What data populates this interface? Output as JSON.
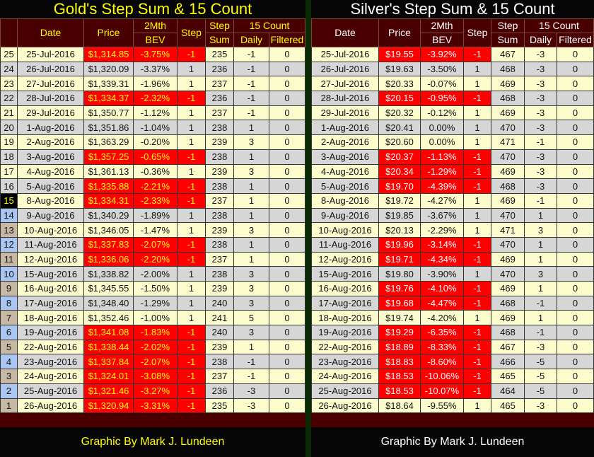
{
  "colors": {
    "header_bg": "#4a0000",
    "negative": "#ff0000",
    "row_a": "#fdfccc",
    "row_b": "#d6d6d6"
  },
  "headers": {
    "date": "Date",
    "price": "Price",
    "bev1": "2Mth",
    "bev2": "BEV",
    "step": "Step",
    "sum1": "Step",
    "sum2": "Sum",
    "count": "15 Count",
    "daily": "Daily",
    "filtered": "Filtered"
  },
  "gold": {
    "title": "Gold's Step Sum & 15 Count",
    "footer": "Graphic By Mark J. Lundeen",
    "rows": [
      [
        "25",
        "25-Jul-2016",
        "$1,314.85",
        "-3.75%",
        "-1",
        "235",
        "-1",
        "0"
      ],
      [
        "24",
        "26-Jul-2016",
        "$1,320.09",
        "-3.37%",
        "1",
        "236",
        "-1",
        "0"
      ],
      [
        "23",
        "27-Jul-2016",
        "$1,339.31",
        "-1.96%",
        "1",
        "237",
        "-1",
        "0"
      ],
      [
        "22",
        "28-Jul-2016",
        "$1,334.37",
        "-2.32%",
        "-1",
        "236",
        "-1",
        "0"
      ],
      [
        "21",
        "29-Jul-2016",
        "$1,350.77",
        "-1.12%",
        "1",
        "237",
        "-1",
        "0"
      ],
      [
        "20",
        "1-Aug-2016",
        "$1,351.86",
        "-1.04%",
        "1",
        "238",
        "1",
        "0"
      ],
      [
        "19",
        "2-Aug-2016",
        "$1,363.29",
        "-0.20%",
        "1",
        "239",
        "3",
        "0"
      ],
      [
        "18",
        "3-Aug-2016",
        "$1,357.25",
        "-0.65%",
        "-1",
        "238",
        "1",
        "0"
      ],
      [
        "17",
        "4-Aug-2016",
        "$1,361.13",
        "-0.36%",
        "1",
        "239",
        "3",
        "0"
      ],
      [
        "16",
        "5-Aug-2016",
        "$1,335.88",
        "-2.21%",
        "-1",
        "238",
        "1",
        "0"
      ],
      [
        "15",
        "8-Aug-2016",
        "$1,334.31",
        "-2.33%",
        "-1",
        "237",
        "1",
        "0"
      ],
      [
        "14",
        "9-Aug-2016",
        "$1,340.29",
        "-1.89%",
        "1",
        "238",
        "1",
        "0"
      ],
      [
        "13",
        "10-Aug-2016",
        "$1,346.05",
        "-1.47%",
        "1",
        "239",
        "3",
        "0"
      ],
      [
        "12",
        "11-Aug-2016",
        "$1,337.83",
        "-2.07%",
        "-1",
        "238",
        "1",
        "0"
      ],
      [
        "11",
        "12-Aug-2016",
        "$1,336.06",
        "-2.20%",
        "-1",
        "237",
        "1",
        "0"
      ],
      [
        "10",
        "15-Aug-2016",
        "$1,338.82",
        "-2.00%",
        "1",
        "238",
        "3",
        "0"
      ],
      [
        "9",
        "16-Aug-2016",
        "$1,345.55",
        "-1.50%",
        "1",
        "239",
        "3",
        "0"
      ],
      [
        "8",
        "17-Aug-2016",
        "$1,348.40",
        "-1.29%",
        "1",
        "240",
        "3",
        "0"
      ],
      [
        "7",
        "18-Aug-2016",
        "$1,352.46",
        "-1.00%",
        "1",
        "241",
        "5",
        "0"
      ],
      [
        "6",
        "19-Aug-2016",
        "$1,341.08",
        "-1.83%",
        "-1",
        "240",
        "3",
        "0"
      ],
      [
        "5",
        "22-Aug-2016",
        "$1,338.44",
        "-2.02%",
        "-1",
        "239",
        "1",
        "0"
      ],
      [
        "4",
        "23-Aug-2016",
        "$1,337.84",
        "-2.07%",
        "-1",
        "238",
        "-1",
        "0"
      ],
      [
        "3",
        "24-Aug-2016",
        "$1,324.01",
        "-3.08%",
        "-1",
        "237",
        "-1",
        "0"
      ],
      [
        "2",
        "25-Aug-2016",
        "$1,321.46",
        "-3.27%",
        "-1",
        "236",
        "-3",
        "0"
      ],
      [
        "1",
        "26-Aug-2016",
        "$1,320.94",
        "-3.31%",
        "-1",
        "235",
        "-3",
        "0"
      ]
    ]
  },
  "silver": {
    "title": "Silver's Step Sum & 15 Count",
    "footer": "Graphic By Mark J. Lundeen",
    "rows": [
      [
        "25-Jul-2016",
        "$19.55",
        "-3.92%",
        "-1",
        "467",
        "-3",
        "0"
      ],
      [
        "26-Jul-2016",
        "$19.63",
        "-3.50%",
        "1",
        "468",
        "-3",
        "0"
      ],
      [
        "27-Jul-2016",
        "$20.33",
        "-0.07%",
        "1",
        "469",
        "-3",
        "0"
      ],
      [
        "28-Jul-2016",
        "$20.15",
        "-0.95%",
        "-1",
        "468",
        "-3",
        "0"
      ],
      [
        "29-Jul-2016",
        "$20.32",
        "-0.12%",
        "1",
        "469",
        "-3",
        "0"
      ],
      [
        "1-Aug-2016",
        "$20.41",
        "0.00%",
        "1",
        "470",
        "-3",
        "0"
      ],
      [
        "2-Aug-2016",
        "$20.60",
        "0.00%",
        "1",
        "471",
        "-1",
        "0"
      ],
      [
        "3-Aug-2016",
        "$20.37",
        "-1.13%",
        "-1",
        "470",
        "-3",
        "0"
      ],
      [
        "4-Aug-2016",
        "$20.34",
        "-1.29%",
        "-1",
        "469",
        "-3",
        "0"
      ],
      [
        "5-Aug-2016",
        "$19.70",
        "-4.39%",
        "-1",
        "468",
        "-3",
        "0"
      ],
      [
        "8-Aug-2016",
        "$19.72",
        "-4.27%",
        "1",
        "469",
        "-1",
        "0"
      ],
      [
        "9-Aug-2016",
        "$19.85",
        "-3.67%",
        "1",
        "470",
        "1",
        "0"
      ],
      [
        "10-Aug-2016",
        "$20.13",
        "-2.29%",
        "1",
        "471",
        "3",
        "0"
      ],
      [
        "11-Aug-2016",
        "$19.96",
        "-3.14%",
        "-1",
        "470",
        "1",
        "0"
      ],
      [
        "12-Aug-2016",
        "$19.71",
        "-4.34%",
        "-1",
        "469",
        "1",
        "0"
      ],
      [
        "15-Aug-2016",
        "$19.80",
        "-3.90%",
        "1",
        "470",
        "3",
        "0"
      ],
      [
        "16-Aug-2016",
        "$19.76",
        "-4.10%",
        "-1",
        "469",
        "1",
        "0"
      ],
      [
        "17-Aug-2016",
        "$19.68",
        "-4.47%",
        "-1",
        "468",
        "-1",
        "0"
      ],
      [
        "18-Aug-2016",
        "$19.74",
        "-4.20%",
        "1",
        "469",
        "1",
        "0"
      ],
      [
        "19-Aug-2016",
        "$19.29",
        "-6.35%",
        "-1",
        "468",
        "-1",
        "0"
      ],
      [
        "22-Aug-2016",
        "$18.89",
        "-8.33%",
        "-1",
        "467",
        "-3",
        "0"
      ],
      [
        "23-Aug-2016",
        "$18.83",
        "-8.60%",
        "-1",
        "466",
        "-5",
        "0"
      ],
      [
        "24-Aug-2016",
        "$18.53",
        "-10.06%",
        "-1",
        "465",
        "-5",
        "0"
      ],
      [
        "25-Aug-2016",
        "$18.53",
        "-10.07%",
        "-1",
        "464",
        "-5",
        "0"
      ],
      [
        "26-Aug-2016",
        "$18.64",
        "-9.55%",
        "1",
        "465",
        "-3",
        "0"
      ]
    ]
  }
}
